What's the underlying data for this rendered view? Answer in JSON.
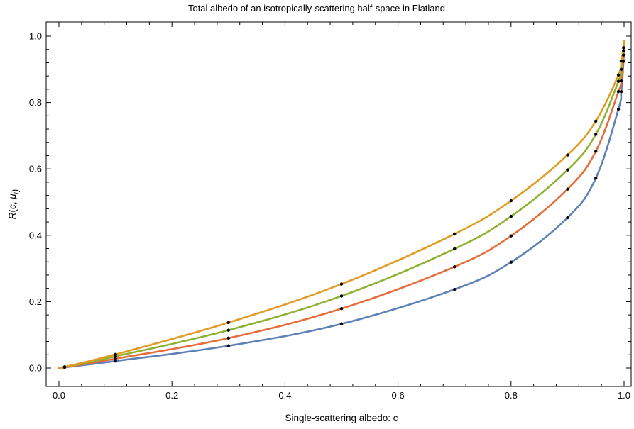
{
  "chart_data": {
    "type": "line",
    "title": "Total albedo of an isotropically-scattering half-space in Flatland",
    "xlabel": "Single-scattering albedo: c",
    "ylabel": "R(c, μi)",
    "xlim": [
      0.0,
      1.0
    ],
    "ylim": [
      0.0,
      1.0
    ],
    "x_ticks": [
      "0.0",
      "0.2",
      "0.4",
      "0.6",
      "0.8",
      "1.0"
    ],
    "y_ticks": [
      "0.0",
      "0.2",
      "0.4",
      "0.6",
      "0.8",
      "1.0"
    ],
    "grid": false,
    "legend": "none",
    "sample_x": [
      0.01,
      0.1,
      0.3,
      0.5,
      0.7,
      0.8,
      0.9,
      0.95,
      0.99,
      0.995,
      0.999
    ],
    "series": [
      {
        "color": "#5e81b5",
        "points": [
          [
            0.01,
            0.002
          ],
          [
            0.1,
            0.021
          ],
          [
            0.3,
            0.067
          ],
          [
            0.5,
            0.133
          ],
          [
            0.7,
            0.237
          ],
          [
            0.8,
            0.319
          ],
          [
            0.9,
            0.453
          ],
          [
            0.95,
            0.572
          ],
          [
            0.99,
            0.78
          ],
          [
            0.995,
            0.833
          ],
          [
            0.999,
            0.924
          ]
        ]
      },
      {
        "color": "#e56d3b",
        "points": [
          [
            0.01,
            0.0025
          ],
          [
            0.1,
            0.028
          ],
          [
            0.3,
            0.09
          ],
          [
            0.5,
            0.179
          ],
          [
            0.7,
            0.305
          ],
          [
            0.8,
            0.398
          ],
          [
            0.9,
            0.539
          ],
          [
            0.95,
            0.653
          ],
          [
            0.99,
            0.833
          ],
          [
            0.995,
            0.865
          ],
          [
            0.999,
            0.943
          ]
        ]
      },
      {
        "color": "#8fb131",
        "points": [
          [
            0.01,
            0.003
          ],
          [
            0.1,
            0.035
          ],
          [
            0.3,
            0.114
          ],
          [
            0.5,
            0.217
          ],
          [
            0.7,
            0.359
          ],
          [
            0.8,
            0.457
          ],
          [
            0.9,
            0.597
          ],
          [
            0.95,
            0.704
          ],
          [
            0.99,
            0.864
          ],
          [
            0.995,
            0.9
          ],
          [
            0.999,
            0.956
          ]
        ]
      },
      {
        "color": "#e19c24",
        "points": [
          [
            0.01,
            0.0035
          ],
          [
            0.1,
            0.041
          ],
          [
            0.3,
            0.137
          ],
          [
            0.5,
            0.253
          ],
          [
            0.7,
            0.404
          ],
          [
            0.8,
            0.504
          ],
          [
            0.9,
            0.642
          ],
          [
            0.95,
            0.744
          ],
          [
            0.99,
            0.883
          ],
          [
            0.995,
            0.925
          ],
          [
            0.999,
            0.965
          ]
        ]
      }
    ]
  }
}
